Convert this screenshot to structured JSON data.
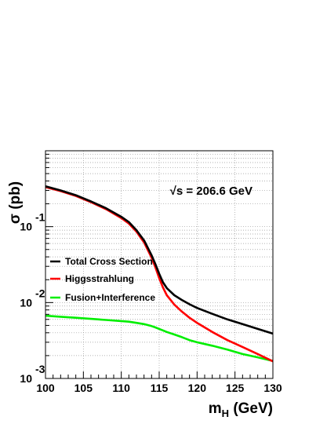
{
  "chart_data": {
    "type": "line",
    "xlabel_main": "m",
    "xlabel_sub": "H",
    "xlabel_unit": " (GeV)",
    "ylabel": "σ (pb)",
    "annotation": "√s = 206.6 GeV",
    "xlim": [
      100,
      130
    ],
    "ylim": [
      0.001,
      1
    ],
    "yscale": "log",
    "grid": true,
    "legend_position": "left-middle",
    "x_ticks": [
      "100",
      "105",
      "110",
      "115",
      "120",
      "125",
      "130"
    ],
    "y_ticks": [
      {
        "base": "10",
        "exp": "-1"
      },
      {
        "base": "10",
        "exp": "-2"
      },
      {
        "base": "10",
        "exp": "-3"
      }
    ],
    "x": [
      100,
      102,
      104,
      106,
      108,
      110,
      111,
      112,
      113,
      114,
      114.5,
      115,
      115.5,
      116,
      117,
      118,
      119,
      120,
      122,
      124,
      126,
      128,
      130
    ],
    "series": [
      {
        "name": "Total Cross Section",
        "color": "#000000",
        "values": [
          0.34,
          0.3,
          0.26,
          0.215,
          0.175,
          0.135,
          0.115,
          0.09,
          0.066,
          0.042,
          0.032,
          0.024,
          0.0185,
          0.0155,
          0.0125,
          0.0108,
          0.0095,
          0.0085,
          0.0071,
          0.006,
          0.0052,
          0.0045,
          0.0039
        ]
      },
      {
        "name": "Higgsstrahlung",
        "color": "#ff0000",
        "values": [
          0.333,
          0.294,
          0.254,
          0.21,
          0.17,
          0.13,
          0.11,
          0.086,
          0.062,
          0.039,
          0.029,
          0.021,
          0.0158,
          0.0125,
          0.0094,
          0.0076,
          0.0063,
          0.0054,
          0.0041,
          0.0032,
          0.0026,
          0.0021,
          0.00168
        ]
      },
      {
        "name": "Fusion+Interference",
        "color": "#00ee00",
        "values": [
          0.0067,
          0.0065,
          0.0063,
          0.0061,
          0.0059,
          0.0057,
          0.0056,
          0.0054,
          0.0052,
          0.0049,
          0.0047,
          0.0045,
          0.0043,
          0.0041,
          0.0038,
          0.0035,
          0.0032,
          0.003,
          0.0027,
          0.0024,
          0.0021,
          0.0019,
          0.0017
        ]
      }
    ]
  }
}
